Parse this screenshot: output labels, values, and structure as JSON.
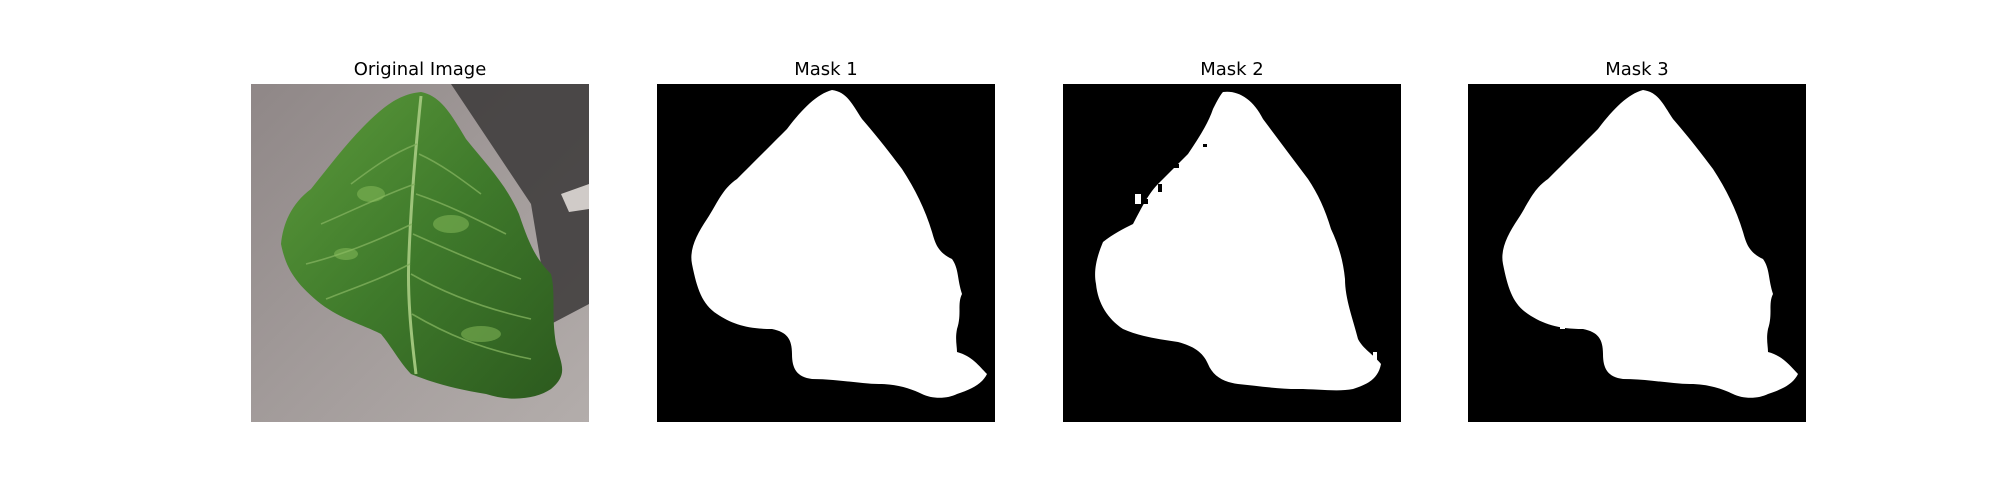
{
  "figure": {
    "panels": [
      {
        "title": "Original Image",
        "kind": "photo"
      },
      {
        "title": "Mask 1",
        "kind": "mask"
      },
      {
        "title": "Mask 2",
        "kind": "mask"
      },
      {
        "title": "Mask 3",
        "kind": "mask"
      }
    ]
  },
  "colors": {
    "background": "#ffffff",
    "mask_background": "#000000",
    "mask_foreground": "#ffffff",
    "leaf_dark": "#2f5a22",
    "leaf_mid": "#4f8a35",
    "leaf_light": "#6fa64a",
    "surface": "#9a9494"
  }
}
